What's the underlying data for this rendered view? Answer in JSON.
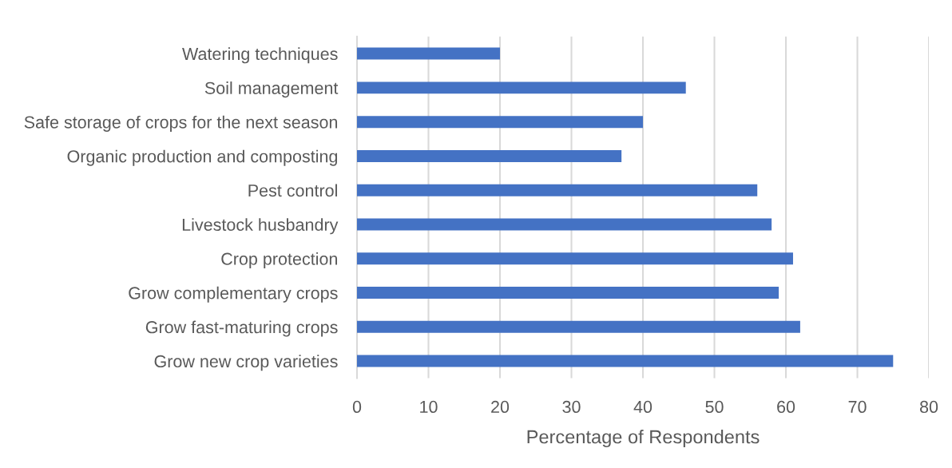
{
  "chart_data": {
    "type": "bar",
    "orientation": "horizontal",
    "categories": [
      "Watering techniques",
      "Soil management",
      "Safe storage of crops for the next season",
      "Organic production and composting",
      "Pest control",
      "Livestock husbandry",
      "Crop protection",
      "Grow complementary crops",
      "Grow fast-maturing crops",
      "Grow new crop varieties"
    ],
    "values": [
      20,
      46,
      40,
      37,
      56,
      58,
      61,
      59,
      62,
      75
    ],
    "color": "#4472c4",
    "xlabel": "Percentage of Respondents",
    "xlim": [
      0,
      80
    ],
    "xticks": [
      0,
      10,
      20,
      30,
      40,
      50,
      60,
      70,
      80
    ],
    "grid": "x"
  }
}
